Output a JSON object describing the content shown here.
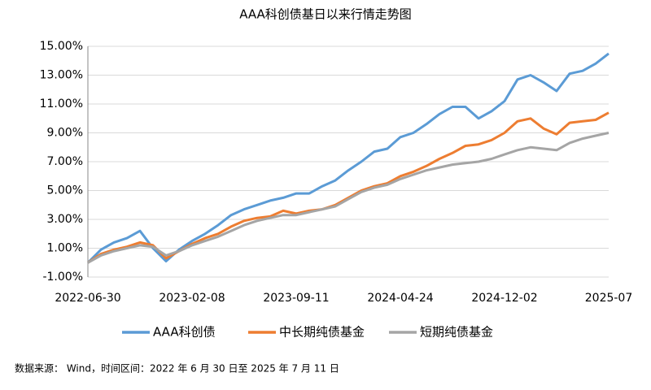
{
  "chart_data": {
    "type": "line",
    "title": "AAA科创债基日以来行情走势图",
    "source": "数据来源： Wind，时间区间：2022 年 6 月 30 日至 2025 年 7 月 11 日",
    "categories": [
      "2022-06-30",
      null,
      null,
      null,
      null,
      null,
      null,
      null,
      "2023-02-08",
      null,
      null,
      null,
      null,
      null,
      null,
      null,
      "2023-09-11",
      null,
      null,
      null,
      null,
      null,
      null,
      null,
      "2024-04-24",
      null,
      null,
      null,
      null,
      null,
      null,
      null,
      "2024-12-02",
      null,
      null,
      null,
      null,
      null,
      null,
      null,
      "2025-07"
    ],
    "series": [
      {
        "name": "AAA科创债",
        "color": "#5b9bd5",
        "values": [
          0,
          0.9,
          1.4,
          1.7,
          2.2,
          1.0,
          0.1,
          0.9,
          1.5,
          2.0,
          2.6,
          3.3,
          3.7,
          4.0,
          4.3,
          4.5,
          4.8,
          4.8,
          5.3,
          5.7,
          6.4,
          7.0,
          7.7,
          7.9,
          8.7,
          9.0,
          9.6,
          10.3,
          10.8,
          10.8,
          10.0,
          10.5,
          11.2,
          12.7,
          13.0,
          12.5,
          11.9,
          13.1,
          13.3,
          13.8,
          14.5
        ]
      },
      {
        "name": "中长期纯债基金",
        "color": "#ed7d31",
        "values": [
          0,
          0.6,
          0.9,
          1.1,
          1.4,
          1.2,
          0.3,
          0.8,
          1.3,
          1.7,
          2.0,
          2.5,
          2.9,
          3.1,
          3.2,
          3.6,
          3.4,
          3.6,
          3.7,
          4.0,
          4.5,
          5.0,
          5.3,
          5.5,
          6.0,
          6.3,
          6.7,
          7.2,
          7.6,
          8.1,
          8.2,
          8.5,
          9.0,
          9.8,
          10.0,
          9.3,
          8.9,
          9.7,
          9.8,
          9.9,
          10.4
        ]
      },
      {
        "name": "短期纯债基金",
        "color": "#a5a5a5",
        "values": [
          0,
          0.5,
          0.8,
          1.0,
          1.2,
          1.1,
          0.5,
          0.8,
          1.2,
          1.5,
          1.8,
          2.2,
          2.6,
          2.9,
          3.1,
          3.3,
          3.3,
          3.5,
          3.7,
          3.9,
          4.4,
          4.9,
          5.2,
          5.4,
          5.8,
          6.1,
          6.4,
          6.6,
          6.8,
          6.9,
          7.0,
          7.2,
          7.5,
          7.8,
          8.0,
          7.9,
          7.8,
          8.3,
          8.6,
          8.8,
          9.0
        ]
      }
    ],
    "ylim": [
      -1,
      15
    ],
    "yticks": [
      {
        "value": -1,
        "label": "-1.00%"
      },
      {
        "value": 1,
        "label": "1.00%"
      },
      {
        "value": 3,
        "label": "3.00%"
      },
      {
        "value": 5,
        "label": "5.00%"
      },
      {
        "value": 7,
        "label": "7.00%"
      },
      {
        "value": 9,
        "label": "9.00%"
      },
      {
        "value": 11,
        "label": "11.00%"
      },
      {
        "value": 13,
        "label": "13.00%"
      },
      {
        "value": 15,
        "label": "15.00%"
      }
    ],
    "grid": true
  }
}
